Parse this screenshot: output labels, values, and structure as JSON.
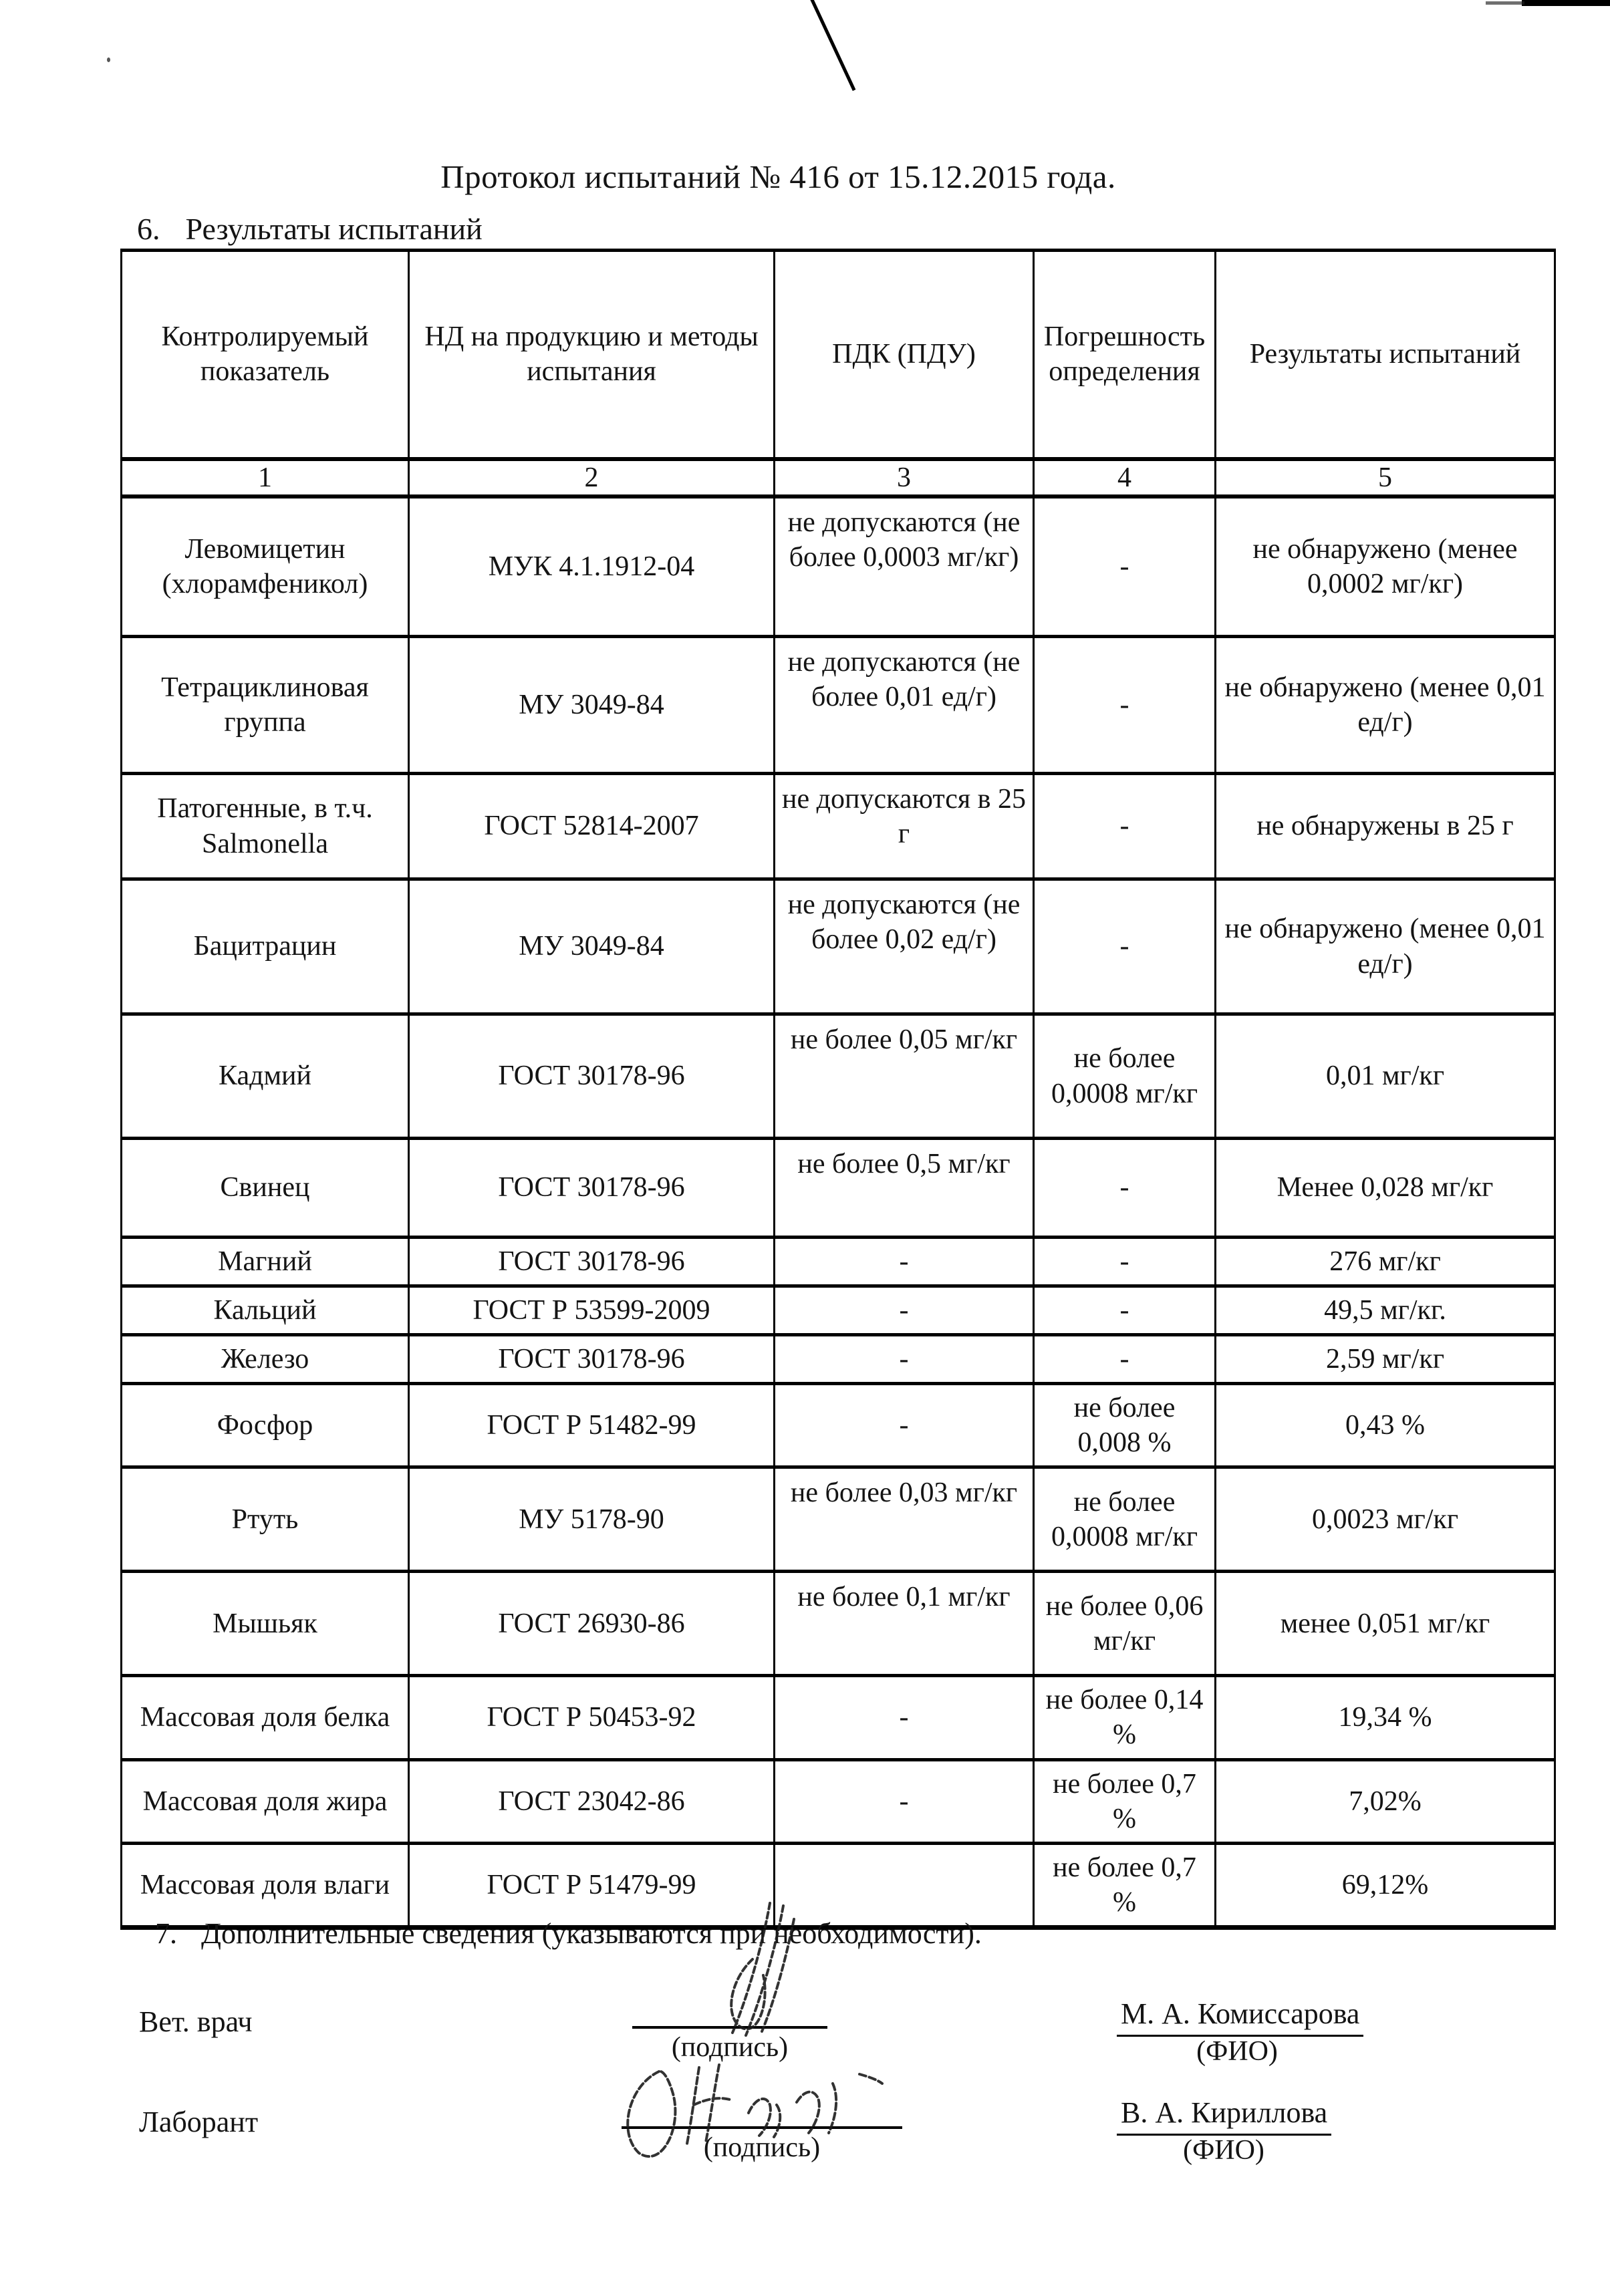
{
  "title": "Протокол испытаний № 416 от 15.12.2015 года.",
  "section": {
    "number": "6.",
    "label": "Результаты испытаний"
  },
  "table": {
    "headers": [
      "Контролируемый показатель",
      "НД на продукцию и методы испытания",
      "ПДК\n(ПДУ)",
      "Погрешность определения",
      "Результаты испытаний"
    ],
    "column_numbers": [
      "1",
      "2",
      "3",
      "4",
      "5"
    ],
    "rows": [
      {
        "indicator": "Левомицетин (хлорамфеникол)",
        "method": "МУК 4.1.1912-04",
        "limit": "не допускаются (не более 0,0003 мг/кг)",
        "error": "-",
        "result": "не обнаружено (менее 0,0002 мг/кг)"
      },
      {
        "indicator": "Тетрациклиновая группа",
        "method": "МУ 3049-84",
        "limit": "не допускаются (не более 0,01 ед/г)",
        "error": "-",
        "result": "не обнаружено (менее 0,01 ед/г)"
      },
      {
        "indicator": "Патогенные, в т.ч. Salmonella",
        "method": "ГОСТ 52814-2007",
        "limit": "не допускаются в 25 г",
        "error": "-",
        "result": "не обнаружены в 25 г"
      },
      {
        "indicator": "Бацитрацин",
        "method": "МУ 3049-84",
        "limit": "не допускаются (не более 0,02 ед/г)",
        "error": "-",
        "result": "не обнаружено (менее 0,01 ед/г)"
      },
      {
        "indicator": "Кадмий",
        "method": "ГОСТ 30178-96",
        "limit": "не более 0,05 мг/кг",
        "error": "не более 0,0008 мг/кг",
        "result": "0,01 мг/кг"
      },
      {
        "indicator": "Свинец",
        "method": "ГОСТ 30178-96",
        "limit": "не более 0,5 мг/кг",
        "error": "-",
        "result": "Менее 0,028 мг/кг"
      },
      {
        "indicator": "Магний",
        "method": "ГОСТ 30178-96",
        "limit": "-",
        "error": "-",
        "result": "276 мг/кг"
      },
      {
        "indicator": "Кальций",
        "method": "ГОСТ Р 53599-2009",
        "limit": "-",
        "error": "-",
        "result": "49,5 мг/кг."
      },
      {
        "indicator": "Железо",
        "method": "ГОСТ 30178-96",
        "limit": "-",
        "error": "-",
        "result": "2,59 мг/кг"
      },
      {
        "indicator": "Фосфор",
        "method": "ГОСТ Р 51482-99",
        "limit": "-",
        "error": "не более 0,008 %",
        "result": "0,43 %"
      },
      {
        "indicator": "Ртуть",
        "method": "МУ 5178-90",
        "limit": "не более 0,03 мг/кг",
        "error": "не более 0,0008 мг/кг",
        "result": "0,0023 мг/кг"
      },
      {
        "indicator": "Мышьяк",
        "method": "ГОСТ 26930-86",
        "limit": "не более 0,1 мг/кг",
        "error": "не более 0,06 мг/кг",
        "result": "менее 0,051 мг/кг"
      },
      {
        "indicator": "Массовая доля белка",
        "method": "ГОСТ Р 50453-92",
        "limit": "-",
        "error": "не более 0,14 %",
        "result": "19,34 %"
      },
      {
        "indicator": "Массовая доля жира",
        "method": "ГОСТ 23042-86",
        "limit": "-",
        "error": "не более 0,7 %",
        "result": "7,02%"
      },
      {
        "indicator": "Массовая доля влаги",
        "method": "ГОСТ Р 51479-99",
        "limit": "",
        "error": "не более 0,7 %",
        "result": "69,12%"
      }
    ]
  },
  "footer": {
    "item_number": "7.",
    "item_text": "Дополнительные сведения (указываются при необходимости).",
    "signature_caption": "(подпись)",
    "name_caption": "(ФИО)",
    "signatories": [
      {
        "role": "Вет. врач",
        "name": "М. А. Комиссарова"
      },
      {
        "role": "Лаборант",
        "name": "В. А. Кириллова"
      }
    ]
  },
  "colors": {
    "ink": "#141414",
    "paper": "#ffffff"
  }
}
